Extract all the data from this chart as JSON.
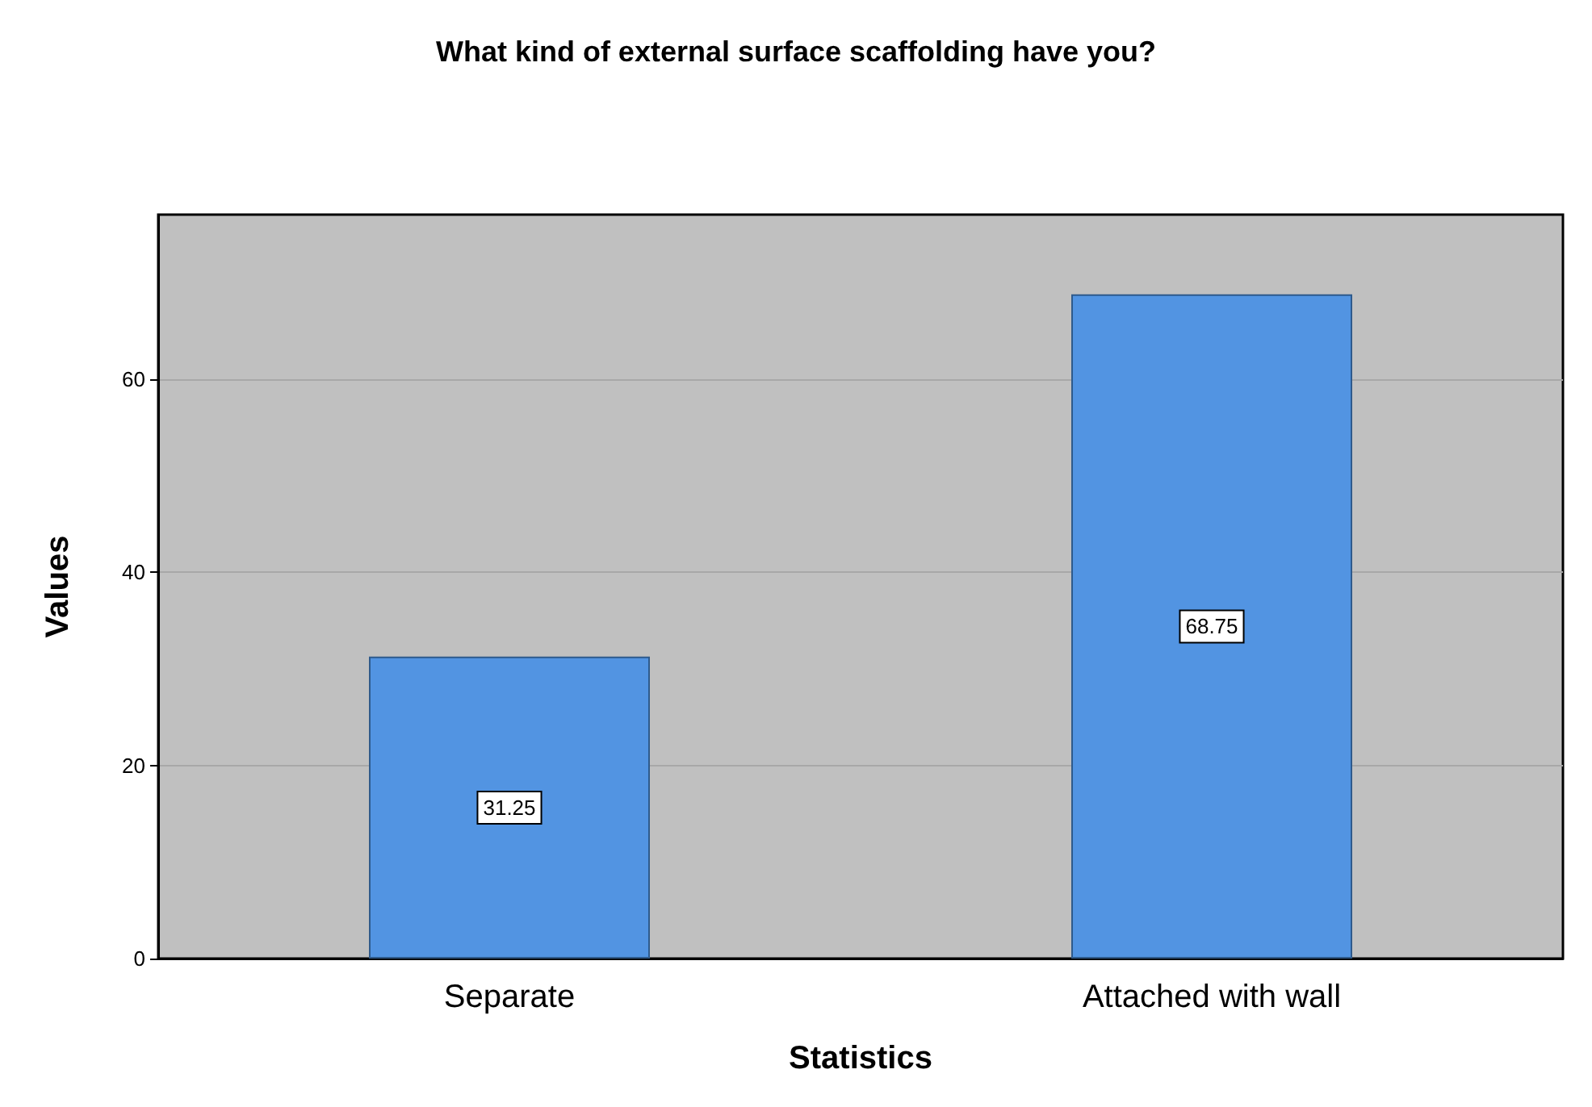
{
  "chart_data": {
    "type": "bar",
    "title": "What kind of external surface scaffolding have you?",
    "xlabel": "Statistics",
    "ylabel": "Values",
    "categories": [
      "Separate",
      "Attached with wall"
    ],
    "values": [
      31.25,
      68.75
    ],
    "color": "#5294e2",
    "ylim": [
      0,
      77
    ],
    "yticks": [
      0,
      20,
      40,
      60
    ],
    "grid": "y",
    "data_labels": true
  }
}
